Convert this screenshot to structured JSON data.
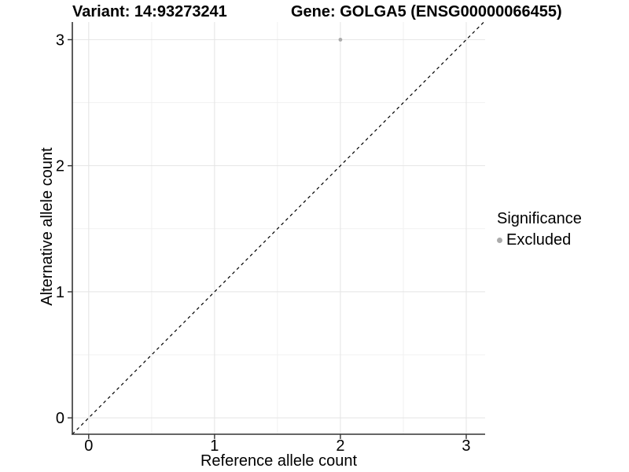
{
  "chart_data": {
    "type": "scatter",
    "titles": {
      "left": "Variant: 14:93273241",
      "right": "Gene: GOLGA5 (ENSG00000066455)"
    },
    "xlabel": "Reference allele count",
    "ylabel": "Alternative allele count",
    "x_ticks": [
      0,
      1,
      2,
      3
    ],
    "y_ticks": [
      0,
      1,
      2,
      3
    ],
    "x_minor": [
      0.5,
      1.5,
      2.5
    ],
    "y_minor": [
      0.5,
      1.5,
      2.5
    ],
    "xlim": [
      -0.13,
      3.15
    ],
    "ylim": [
      -0.13,
      3.14
    ],
    "grid": "major-and-minor",
    "legend_position": "right",
    "points": [
      {
        "x": 2,
        "y": 3,
        "series": "Excluded"
      }
    ],
    "reference_line": {
      "type": "identity y=x",
      "style": "dashed"
    },
    "legend": {
      "title": "Significance",
      "items": [
        {
          "label": "Excluded",
          "color": "#ababab"
        }
      ]
    },
    "colors": {
      "point": "#ababab",
      "grid_major": "#e4e4e4",
      "grid_minor": "#f1f1f1",
      "axis": "#333333",
      "reference_line": "#000000",
      "text": "#000000",
      "background": "#ffffff"
    }
  }
}
